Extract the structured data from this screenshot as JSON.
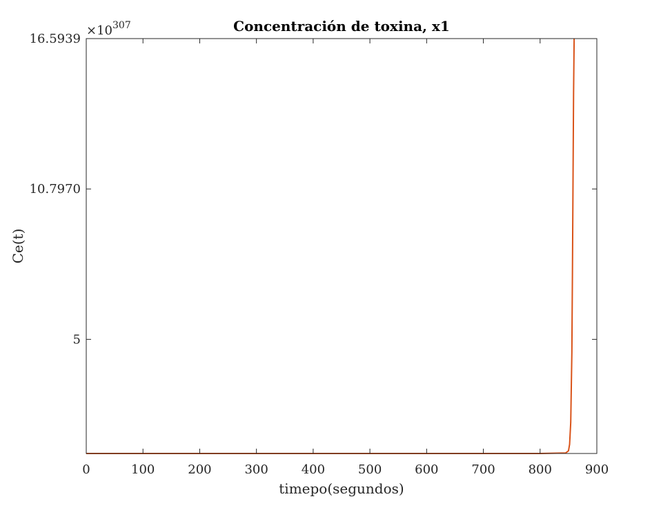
{
  "chart_data": {
    "type": "line",
    "title": "Concentración de toxina, x1",
    "xlabel": "timepo(segundos)",
    "ylabel": "Ce(t)",
    "exponent_label_base": "×10",
    "exponent_label_power": "307",
    "xlim": [
      0,
      900
    ],
    "ylim": [
      0.6,
      16.5939
    ],
    "xticks": [
      0,
      100,
      200,
      300,
      400,
      500,
      600,
      700,
      800,
      900
    ],
    "xtick_labels": [
      "0",
      "100",
      "200",
      "300",
      "400",
      "500",
      "600",
      "700",
      "800",
      "900"
    ],
    "yticks": [
      5,
      10.797,
      16.5939
    ],
    "ytick_labels": [
      "5",
      "10.7970",
      "16.5939"
    ],
    "grid": false,
    "series": [
      {
        "color": "#d95319",
        "x": [
          0,
          100,
          200,
          300,
          400,
          500,
          600,
          700,
          800,
          845,
          850,
          852,
          854,
          856,
          857,
          858,
          859,
          860
        ],
        "y": [
          0.6,
          0.6,
          0.6,
          0.6,
          0.6,
          0.6,
          0.6,
          0.6,
          0.6,
          0.62,
          0.7,
          0.95,
          1.8,
          4.5,
          7.5,
          11.0,
          14.5,
          16.5939
        ]
      }
    ]
  }
}
